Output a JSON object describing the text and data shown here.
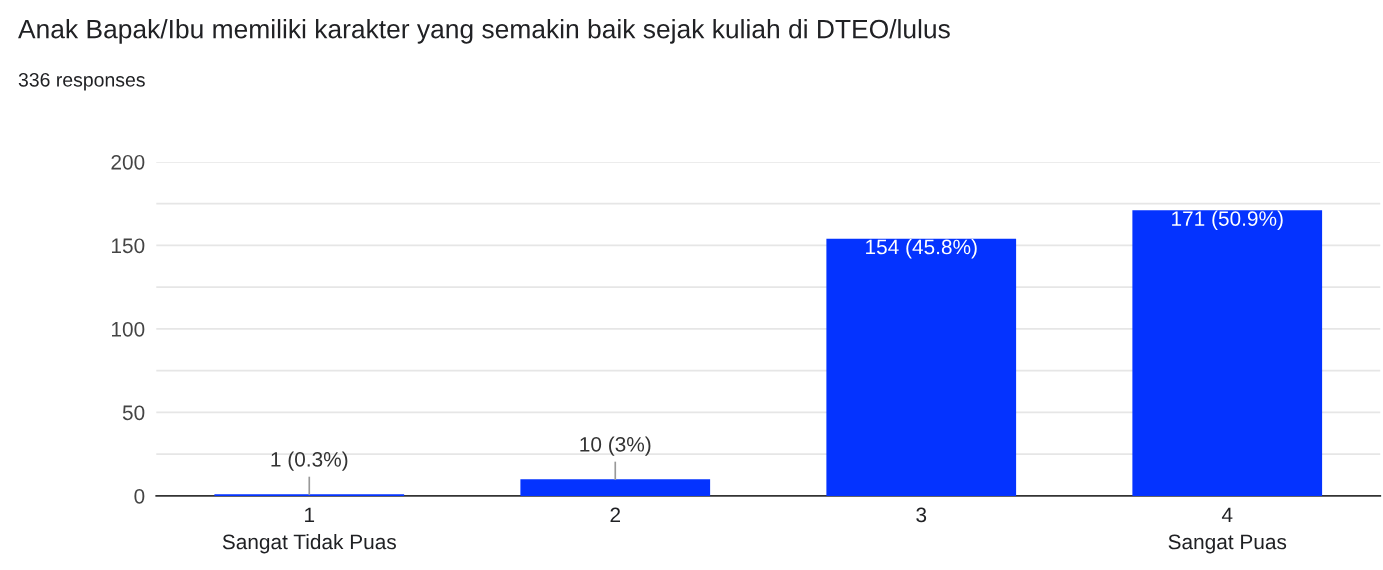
{
  "chart_data": {
    "type": "bar",
    "title": "Anak Bapak/Ibu memiliki karakter yang semakin baik sejak kuliah di DTEO/lulus",
    "subtitle": "336 responses",
    "categories": [
      "1\nSangat Tidak Puas",
      "2",
      "3",
      "4\nSangat Puas"
    ],
    "values": [
      1,
      10,
      154,
      171
    ],
    "color": "#0433ff",
    "value_labels": [
      "1 (0.3%)",
      "10 (3%)",
      "154 (45.8%)",
      "171 (50.9%)"
    ],
    "ylim": [
      0,
      200
    ],
    "yticks": [
      0,
      {
        "value": 25,
        "label": null
      },
      50,
      {
        "value": 75,
        "label": null
      },
      100,
      {
        "value": 125,
        "label": null
      },
      150,
      {
        "value": 175,
        "label": null
      },
      200
    ],
    "grid": "y",
    "legend": false
  }
}
